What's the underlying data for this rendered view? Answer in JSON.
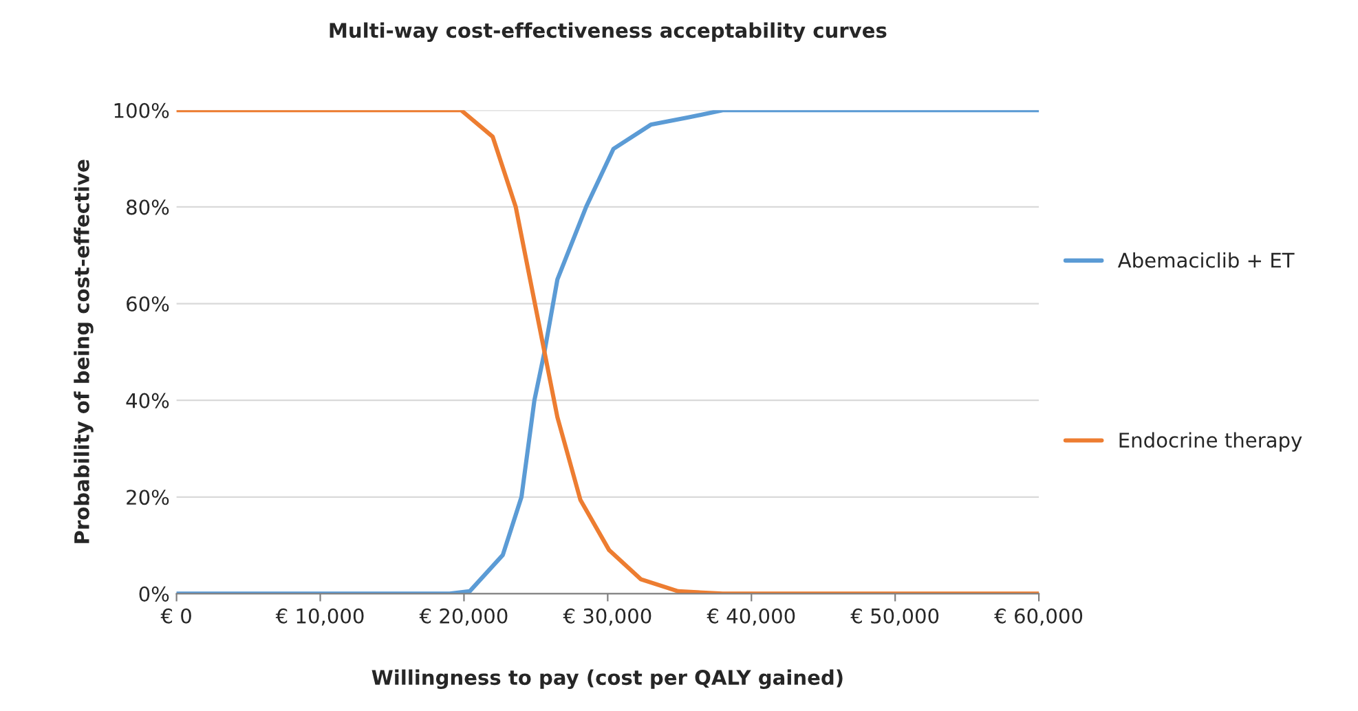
{
  "chart_data": {
    "type": "line",
    "title": "Multi-way cost-effectiveness acceptability curves",
    "xlabel": "Willingness to pay (cost per QALY gained)",
    "ylabel": "Probability of being cost-effective",
    "xlim": [
      0,
      60000
    ],
    "xticks": [
      {
        "value": 0,
        "label": "€ 0"
      },
      {
        "value": 10000,
        "label": "€ 10,000"
      },
      {
        "value": 20000,
        "label": "€ 20,000"
      },
      {
        "value": 30000,
        "label": "€ 30,000"
      },
      {
        "value": 40000,
        "label": "€ 40,000"
      },
      {
        "value": 50000,
        "label": "€ 50,000"
      },
      {
        "value": 60000,
        "label": "€ 60,000"
      }
    ],
    "ylim": [
      0,
      100
    ],
    "yticks": [
      {
        "value": 0,
        "label": "0%"
      },
      {
        "value": 20,
        "label": "20%"
      },
      {
        "value": 40,
        "label": "40%"
      },
      {
        "value": 60,
        "label": "60%"
      },
      {
        "value": 80,
        "label": "80%"
      },
      {
        "value": 100,
        "label": "100%"
      }
    ],
    "grid": "y",
    "legend": "right",
    "marker": "none",
    "line_style": "solid",
    "series": [
      {
        "name": "Abemaciclib + ET",
        "color": "#5b9bd5",
        "x": [
          0,
          10000,
          19000,
          20400,
          22700,
          24000,
          24900,
          25600,
          26500,
          28500,
          30400,
          33000,
          35600,
          38000,
          50000,
          60000
        ],
        "values": [
          0,
          0,
          0,
          0.5,
          8,
          20,
          40,
          50,
          65,
          80,
          92,
          97,
          98.5,
          100,
          100,
          100
        ]
      },
      {
        "name": "Endocrine therapy",
        "color": "#ed7d31",
        "x": [
          0,
          10000,
          19800,
          22000,
          23600,
          24600,
          25600,
          26500,
          28100,
          30100,
          32300,
          34900,
          38000,
          50000,
          60000
        ],
        "values": [
          100,
          100,
          100,
          94.5,
          80,
          65,
          50,
          36.5,
          19.4,
          9,
          3,
          0.5,
          0,
          0,
          0
        ]
      }
    ]
  }
}
